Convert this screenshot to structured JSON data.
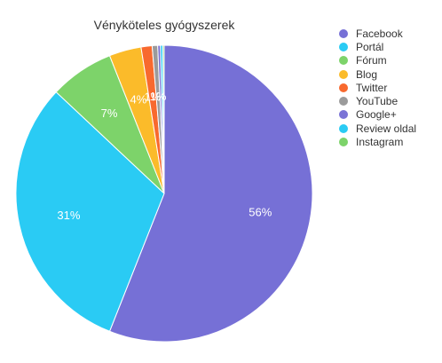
{
  "chart_data": {
    "type": "pie",
    "title": "Vényköteles gyógyszerek",
    "legend_position": "right",
    "slices": [
      {
        "label": "Facebook",
        "value": 56,
        "display": "56%",
        "color": "#7670d6"
      },
      {
        "label": "Portál",
        "value": 31,
        "display": "31%",
        "color": "#2acbf4"
      },
      {
        "label": "Fórum",
        "value": 7,
        "display": "7%",
        "color": "#7dd36a"
      },
      {
        "label": "Blog",
        "value": 3.5,
        "display": "4%",
        "color": "#fbbb2a"
      },
      {
        "label": "Twitter",
        "value": 1.2,
        "display": "1%",
        "color": "#f8692e"
      },
      {
        "label": "YouTube",
        "value": 0.6,
        "display": "1%",
        "color": "#9b9b9b"
      },
      {
        "label": "Google+",
        "value": 0.3,
        "display": "",
        "color": "#7b74d6"
      },
      {
        "label": "Review oldal",
        "value": 0.25,
        "display": "",
        "color": "#2acbf4"
      },
      {
        "label": "Instagram",
        "value": 0.15,
        "display": "",
        "color": "#7dd36a"
      }
    ]
  }
}
